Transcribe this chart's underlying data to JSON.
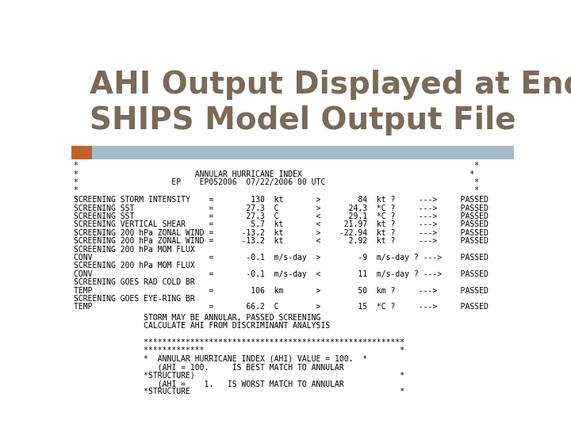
{
  "title_line1": "AHI Output Displayed at End of",
  "title_line2": "SHIPS Model Output File",
  "title_color": "#7a6a5a",
  "title_bg": "#ffffff",
  "orange_bar_color": "#c0622a",
  "header_bg": "#a8bcc8",
  "content_bg": "#ffffff",
  "star_lines": [
    "*                                                                                     *",
    "*                         ANNULAR HURRICANE INDEX                                    *",
    "*                    EP    EP052006  07/22/2006 00 UTC                                *",
    "*                                                                                     *"
  ],
  "screening_lines": [
    "SCREENING STORM INTENSITY    =        130  kt       >        84  kt ?     --->     PASSED",
    "SCREENING SST                =       27.3  C        >      24.3  *C ?     --->     PASSED",
    "SCREENING SST                =       27.3  C        <      29.1  *C ?     --->     PASSED",
    "SCREENING VERTICAL SHEAR     =        5.7  kt       <     21.97  kt ?     --->     PASSED",
    "SCREENING 200 hPa ZONAL WIND =      -13.2  kt       >    -22.94  kt ?     --->     PASSED",
    "SCREENING 200 hPa ZONAL WIND =      -13.2  kt       <      2.92  kt ?     --->     PASSED",
    "SCREENING 200 hPa MOM FLUX",
    "CONV                         =       -0.1  m/s-day  >        -9  m/s-day ? --->    PASSED",
    "SCREENING 200 hPa MOM FLUX",
    "CONV                         =       -0.1  m/s-day  <        11  m/s-day ? --->    PASSED",
    "SCREENING GOES RAD COLD BR",
    "TEMP                         =        106  km       >        50  km ?     --->     PASSED",
    "SCREENING GOES EYE-RING BR",
    "TEMP                         =       66.2  C        >        15  *C ?     --->     PASSED"
  ],
  "bottom_lines": [
    "               STORM MAY BE ANNULAR, PASSED SCREENING",
    "               CALCULATE AHI FROM DISCRIMINANT ANALYSIS",
    "",
    "               ********************************************************",
    "               *************                                          *",
    "               *  ANNULAR HURRICANE INDEX (AHI) VALUE = 100.  *",
    "                  (AHI = 100.     IS BEST MATCH TO ANNULAR",
    "               *STRUCTURE)                                            *",
    "                  (AHI =    1.   IS WORST MATCH TO ANNULAR",
    "               *STRUCTURE                                             *"
  ],
  "font_size": 7.0,
  "mono_font": "monospace",
  "title_fontsize": 28
}
